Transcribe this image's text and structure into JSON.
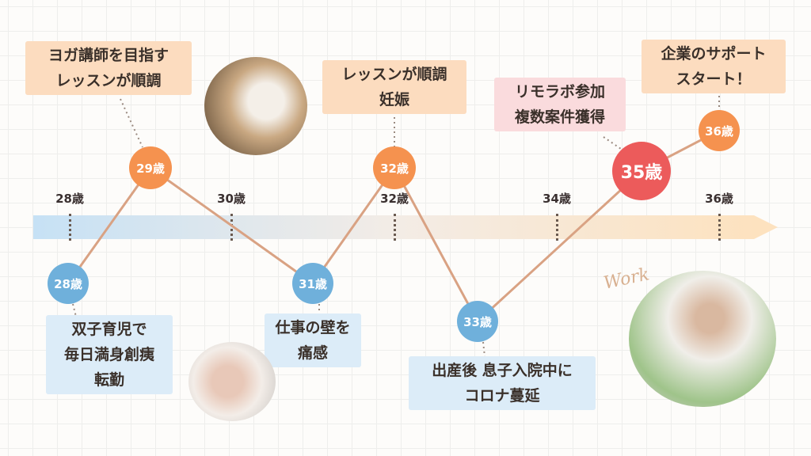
{
  "axis": {
    "ticks": [
      "28歳",
      "30歳",
      "32歳",
      "34歳",
      "36歳"
    ]
  },
  "nodes": [
    {
      "label": "28歳",
      "color": "#6fb0db"
    },
    {
      "label": "29歳",
      "color": "#f5924f"
    },
    {
      "label": "31歳",
      "color": "#6fb0db"
    },
    {
      "label": "32歳",
      "color": "#f5924f"
    },
    {
      "label": "33歳",
      "color": "#6fb0db"
    },
    {
      "label": "35歳",
      "color": "#ec5b5b"
    },
    {
      "label": "36歳",
      "color": "#f5924f"
    }
  ],
  "events": {
    "e29": [
      "ヨガ講師を目指す",
      "レッスンが順調"
    ],
    "e32": [
      "レッスンが順調",
      "妊娠"
    ],
    "e35": [
      "リモラボ参加",
      "複数案件獲得"
    ],
    "e36": [
      "企業のサポート",
      "スタート！"
    ],
    "e28": [
      "双子育児で",
      "毎日満身創痍",
      "転勤"
    ],
    "e31": [
      "仕事の壁を",
      "痛感"
    ],
    "e33": [
      "出産後 息子入院中に",
      "コロナ蔓延"
    ]
  },
  "decor": {
    "work_script": "Work"
  },
  "colors": {
    "line": "#d9a283",
    "peach": "#fcdcbf",
    "pink": "#fadbdd",
    "light_blue": "#dcecf8"
  }
}
